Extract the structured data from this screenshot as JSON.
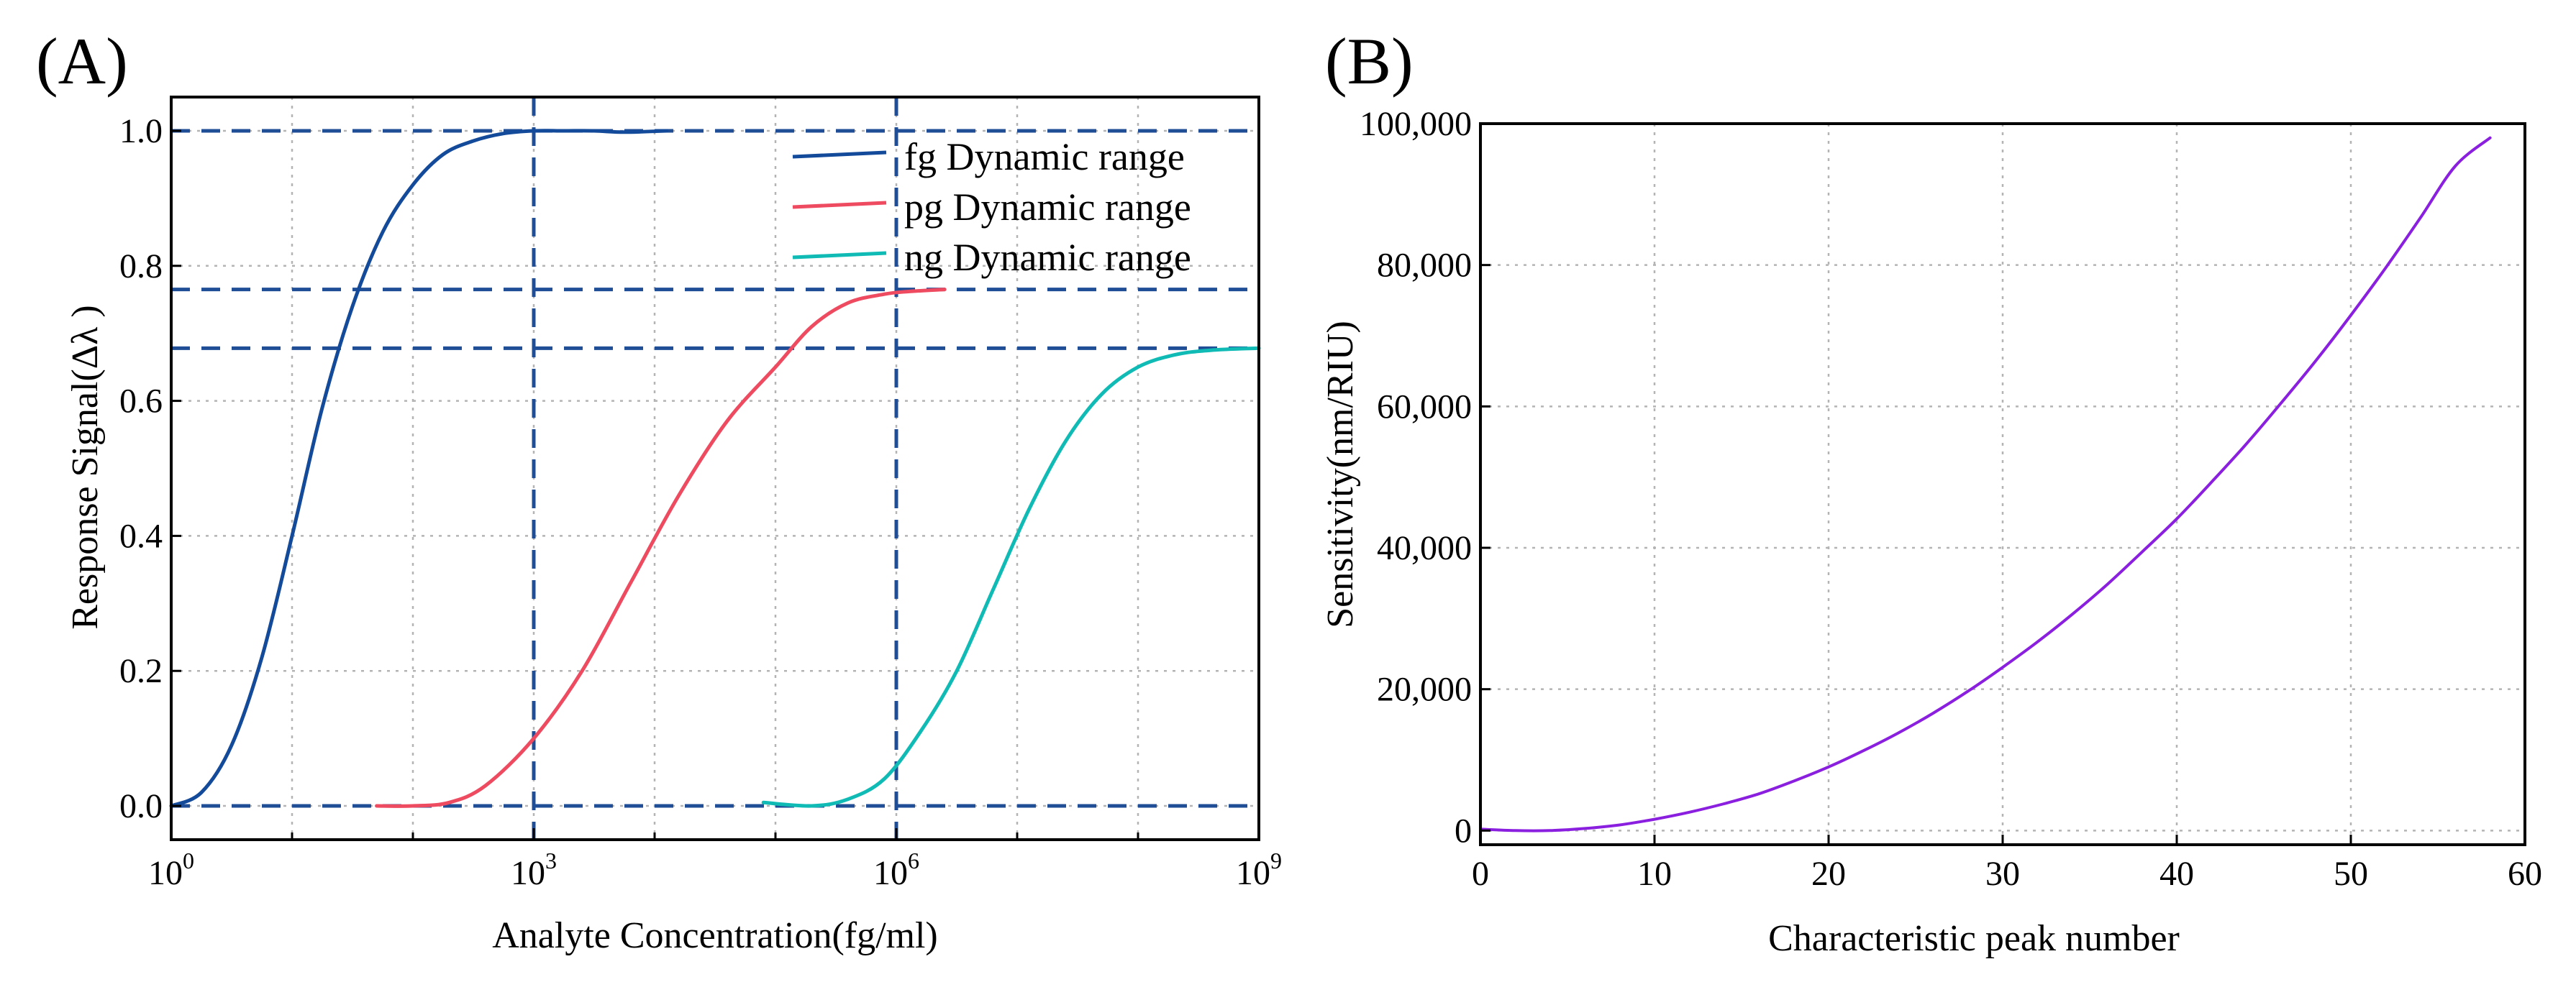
{
  "chart_data": [
    {
      "panel_label": "(A)",
      "type": "line",
      "x_scale": "log10",
      "xlabel": "Analyte Concentration(fg/ml)",
      "ylabel": "Response Signal(Δλ )",
      "xlim_exp": [
        0,
        9
      ],
      "ylim": [
        -0.05,
        1.05
      ],
      "x_ticks": [
        {
          "base": "10",
          "exp": "0",
          "pos": 0
        },
        {
          "base": "10",
          "exp": "3",
          "pos": 3
        },
        {
          "base": "10",
          "exp": "6",
          "pos": 6
        },
        {
          "base": "10",
          "exp": "9",
          "pos": 9
        }
      ],
      "y_ticks": [
        "0.0",
        "0.2",
        "0.4",
        "0.6",
        "0.8",
        "1.0"
      ],
      "y_tick_values": [
        0,
        0.2,
        0.4,
        0.6,
        0.8,
        1.0
      ],
      "grid": true,
      "legend_position": "top-right",
      "series": [
        {
          "name": "fg Dynamic range",
          "color": "#134a9a",
          "x_log": [
            0,
            0.25,
            0.5,
            0.75,
            1,
            1.25,
            1.5,
            1.75,
            2,
            2.25,
            2.5,
            2.75,
            3,
            3.25,
            3.5,
            3.75,
            4.1
          ],
          "y": [
            0.0,
            0.02,
            0.09,
            0.22,
            0.4,
            0.59,
            0.74,
            0.85,
            0.92,
            0.965,
            0.985,
            0.996,
            1.0,
            1.0,
            1.0,
            0.998,
            1.0
          ]
        },
        {
          "name": "pg Dynamic range",
          "color": "#ee4b61",
          "x_log": [
            1.7,
            2.0,
            2.3,
            2.6,
            3.0,
            3.4,
            3.8,
            4.2,
            4.6,
            5.0,
            5.3,
            5.6,
            5.9,
            6.1,
            6.4
          ],
          "y": [
            0.0,
            0.0,
            0.005,
            0.03,
            0.1,
            0.2,
            0.33,
            0.46,
            0.57,
            0.65,
            0.71,
            0.745,
            0.758,
            0.762,
            0.765
          ]
        },
        {
          "name": "ng Dynamic range",
          "color": "#10bbb5",
          "x_log": [
            4.9,
            5.3,
            5.6,
            5.9,
            6.2,
            6.5,
            6.8,
            7.1,
            7.4,
            7.7,
            8.0,
            8.3,
            8.6,
            9.0
          ],
          "y": [
            0.005,
            0.0,
            0.01,
            0.04,
            0.11,
            0.2,
            0.32,
            0.44,
            0.54,
            0.61,
            0.65,
            0.668,
            0.675,
            0.678
          ]
        }
      ],
      "reference_lines": {
        "horizontal": [
          1.0,
          0.765,
          0.678,
          0.0
        ],
        "vertical_log": [
          3,
          6
        ],
        "color": "#1f4e96"
      }
    },
    {
      "panel_label": "(B)",
      "type": "line",
      "xlabel": "Characteristic peak number",
      "ylabel": "Sensitivity(nm/RIU)",
      "xlim": [
        0,
        60
      ],
      "ylim": [
        -2000,
        100000
      ],
      "x_ticks": [
        "0",
        "10",
        "20",
        "30",
        "40",
        "50",
        "60"
      ],
      "x_tick_values": [
        0,
        10,
        20,
        30,
        40,
        50,
        60
      ],
      "y_ticks": [
        "0",
        "20,000",
        "40,000",
        "60,000",
        "80,000",
        "100,000"
      ],
      "y_tick_values": [
        0,
        20000,
        40000,
        60000,
        80000,
        100000
      ],
      "grid": true,
      "series": [
        {
          "name": "Sensitivity",
          "color": "#8a1fe0",
          "x": [
            0,
            2,
            4,
            6,
            8,
            10,
            12,
            14,
            16,
            18,
            20,
            22,
            24,
            26,
            28,
            30,
            32,
            34,
            36,
            38,
            40,
            42,
            44,
            46,
            48,
            50,
            52,
            54,
            56,
            58
          ],
          "y": [
            200,
            0,
            0,
            300,
            800,
            1600,
            2600,
            3800,
            5200,
            7000,
            9000,
            11300,
            13800,
            16600,
            19700,
            23100,
            26700,
            30600,
            34800,
            39400,
            44100,
            49300,
            54700,
            60500,
            66500,
            72900,
            79600,
            86700,
            94000,
            98000
          ]
        }
      ]
    }
  ]
}
